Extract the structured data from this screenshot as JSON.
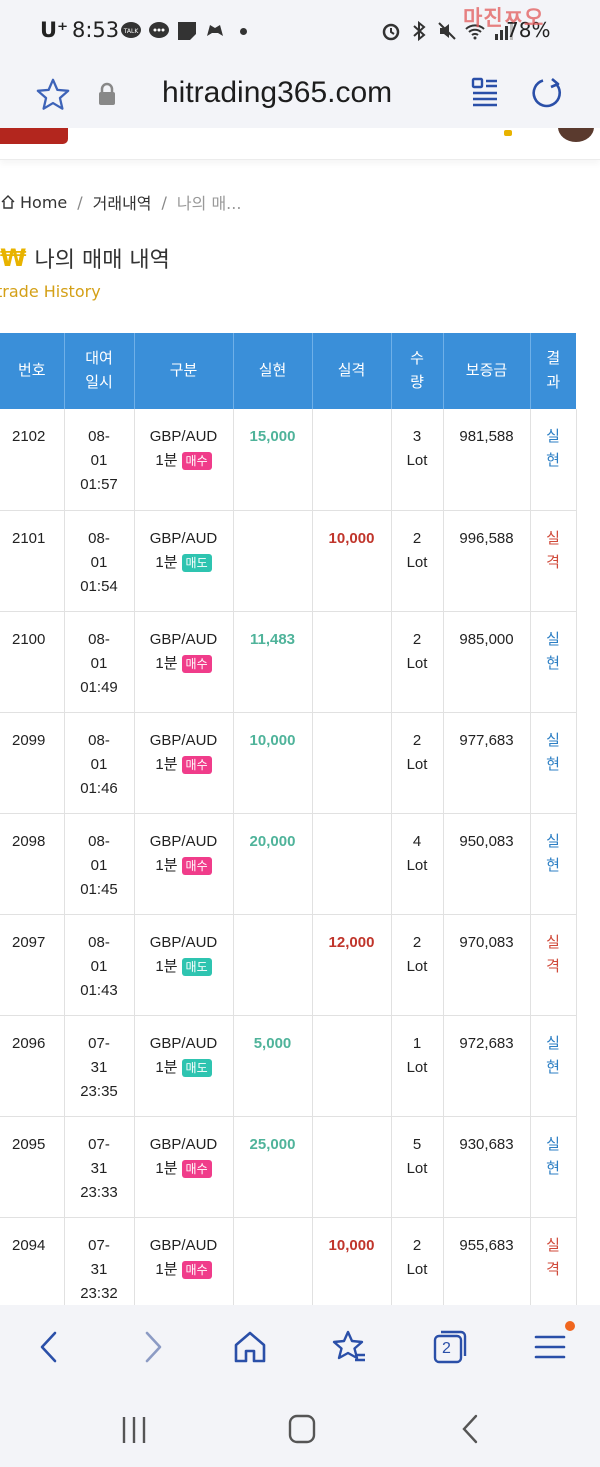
{
  "status_bar": {
    "carrier": "U⁺",
    "time": "8:53",
    "battery": "78%",
    "watermark": "마진ㅉ오"
  },
  "address_bar": {
    "url": "hitrading365.com"
  },
  "breadcrumb": {
    "home": "Home",
    "sep1": "/",
    "section": "거래내역",
    "sep2": "/",
    "current": "나의 매..."
  },
  "page": {
    "title_icon": "₩",
    "title": "나의 매매 내역",
    "subtitle": "trade History"
  },
  "table": {
    "headers": {
      "no": "번호",
      "time": "대여 일시",
      "type": "구분",
      "realized": "실현",
      "lost": "실격",
      "qty": "수 량",
      "margin": "보증금",
      "result": "결 과"
    },
    "rows": [
      {
        "no": "2102",
        "date": "08-",
        "date2": "01",
        "time": "01:57",
        "pair": "GBP/AUD",
        "period": "1분",
        "side": "매수",
        "side_kind": "buy",
        "realized": "15,000",
        "lost": "",
        "qty": "3",
        "unit": "Lot",
        "margin": "981,588",
        "result1": "실",
        "result2": "현",
        "result_kind": "profit"
      },
      {
        "no": "2101",
        "date": "08-",
        "date2": "01",
        "time": "01:54",
        "pair": "GBP/AUD",
        "period": "1분",
        "side": "매도",
        "side_kind": "sell",
        "realized": "",
        "lost": "10,000",
        "qty": "2",
        "unit": "Lot",
        "margin": "996,588",
        "result1": "실",
        "result2": "격",
        "result_kind": "loss"
      },
      {
        "no": "2100",
        "date": "08-",
        "date2": "01",
        "time": "01:49",
        "pair": "GBP/AUD",
        "period": "1분",
        "side": "매수",
        "side_kind": "buy",
        "realized": "11,483",
        "lost": "",
        "qty": "2",
        "unit": "Lot",
        "margin": "985,000",
        "result1": "실",
        "result2": "현",
        "result_kind": "profit"
      },
      {
        "no": "2099",
        "date": "08-",
        "date2": "01",
        "time": "01:46",
        "pair": "GBP/AUD",
        "period": "1분",
        "side": "매수",
        "side_kind": "buy",
        "realized": "10,000",
        "lost": "",
        "qty": "2",
        "unit": "Lot",
        "margin": "977,683",
        "result1": "실",
        "result2": "현",
        "result_kind": "profit"
      },
      {
        "no": "2098",
        "date": "08-",
        "date2": "01",
        "time": "01:45",
        "pair": "GBP/AUD",
        "period": "1분",
        "side": "매수",
        "side_kind": "buy",
        "realized": "20,000",
        "lost": "",
        "qty": "4",
        "unit": "Lot",
        "margin": "950,083",
        "result1": "실",
        "result2": "현",
        "result_kind": "profit"
      },
      {
        "no": "2097",
        "date": "08-",
        "date2": "01",
        "time": "01:43",
        "pair": "GBP/AUD",
        "period": "1분",
        "side": "매도",
        "side_kind": "sell",
        "realized": "",
        "lost": "12,000",
        "qty": "2",
        "unit": "Lot",
        "margin": "970,083",
        "result1": "실",
        "result2": "격",
        "result_kind": "loss"
      },
      {
        "no": "2096",
        "date": "07-",
        "date2": "31",
        "time": "23:35",
        "pair": "GBP/AUD",
        "period": "1분",
        "side": "매도",
        "side_kind": "sell",
        "realized": "5,000",
        "lost": "",
        "qty": "1",
        "unit": "Lot",
        "margin": "972,683",
        "result1": "실",
        "result2": "현",
        "result_kind": "profit"
      },
      {
        "no": "2095",
        "date": "07-",
        "date2": "31",
        "time": "23:33",
        "pair": "GBP/AUD",
        "period": "1분",
        "side": "매수",
        "side_kind": "buy",
        "realized": "25,000",
        "lost": "",
        "qty": "5",
        "unit": "Lot",
        "margin": "930,683",
        "result1": "실",
        "result2": "현",
        "result_kind": "profit"
      },
      {
        "no": "2094",
        "date": "07-",
        "date2": "31",
        "time": "23:32",
        "pair": "GBP/AUD",
        "period": "1분",
        "side": "매수",
        "side_kind": "buy",
        "realized": "",
        "lost": "10,000",
        "qty": "2",
        "unit": "Lot",
        "margin": "955,683",
        "result1": "실",
        "result2": "격",
        "result_kind": "loss"
      }
    ]
  },
  "bottom_nav": {
    "tabs_count": "2"
  },
  "colors": {
    "header_blue": "#3a8fd9",
    "profit_green": "#4fb39a",
    "loss_red": "#c0352b",
    "buy_pink": "#f03c8a",
    "sell_teal": "#2ec4b0",
    "accent_yellow": "#e8b300"
  }
}
